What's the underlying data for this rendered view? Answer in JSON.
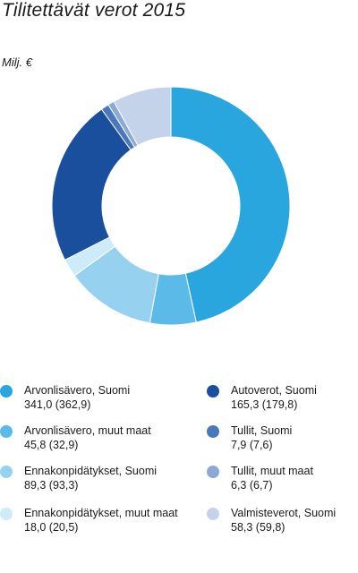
{
  "title": "Tilitettävät verot 2015",
  "unit_label": "Milj. €",
  "chart_data": {
    "type": "pie",
    "variant": "donut",
    "title": "Tilitettävät verot 2015",
    "ylabel": "Milj. €",
    "legend_position": "bottom",
    "start_angle": "top",
    "direction": "clockwise",
    "series": [
      {
        "name": "Arvonlisävero, Suomi",
        "value": 341.0,
        "value_text": "341,0 (362,9)",
        "previous": 362.9,
        "color": "#2aa6df"
      },
      {
        "name": "Arvonlisävero, muut maat",
        "value": 45.8,
        "value_text": "45,8 (32,9)",
        "previous": 32.9,
        "color": "#5cbae9"
      },
      {
        "name": "Ennakonpidätykset, Suomi",
        "value": 89.3,
        "value_text": "89,3 (93,3)",
        "previous": 93.3,
        "color": "#96d2f0"
      },
      {
        "name": "Ennakonpidätykset, muut maat",
        "value": 18.0,
        "value_text": "18,0 (20,5)",
        "previous": 20.5,
        "color": "#cdebf8"
      },
      {
        "name": "Autoverot, Suomi",
        "value": 165.3,
        "value_text": "165,3 (179,8)",
        "previous": 179.8,
        "color": "#1a4f9e"
      },
      {
        "name": "Tullit, Suomi",
        "value": 7.9,
        "value_text": "7,9 (7,6)",
        "previous": 7.6,
        "color": "#4a79bb"
      },
      {
        "name": "Tullit, muut maat",
        "value": 6.3,
        "value_text": "6,3 (6,7)",
        "previous": 6.7,
        "color": "#8ca8d4"
      },
      {
        "name": "Valmisteverot, Suomi",
        "value": 58.3,
        "value_text": "58,3 (59,8)",
        "previous": 59.8,
        "color": "#c5d3ea"
      }
    ]
  }
}
